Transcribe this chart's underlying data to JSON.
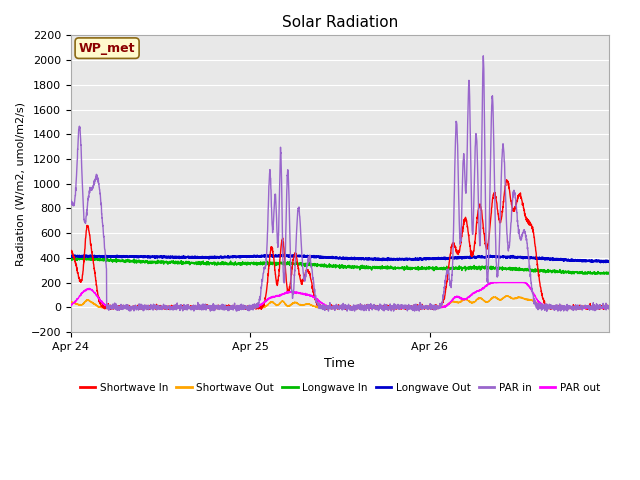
{
  "title": "Solar Radiation",
  "ylabel": "Radiation (W/m2, umol/m2/s)",
  "xlabel": "Time",
  "ylim": [
    -200,
    2200
  ],
  "yticks": [
    -200,
    0,
    200,
    400,
    600,
    800,
    1000,
    1200,
    1400,
    1600,
    1800,
    2000,
    2200
  ],
  "xtick_labels": [
    "Apr 24",
    "Apr 25",
    "Apr 26"
  ],
  "xtick_positions": [
    0.0,
    1.0,
    2.0
  ],
  "annotation_text": "WP_met",
  "annotation_color": "#8B0000",
  "annotation_bg": "#FFFACD",
  "annotation_border": "#8B6914",
  "background_color": "#E8E8E8",
  "series_colors": {
    "shortwave_in": "#FF0000",
    "shortwave_out": "#FFA500",
    "longwave_in": "#00BB00",
    "longwave_out": "#0000CC",
    "par_in": "#9966CC",
    "par_out": "#FF00FF"
  },
  "legend_labels": [
    "Shortwave In",
    "Shortwave Out",
    "Longwave In",
    "Longwave Out",
    "PAR in",
    "PAR out"
  ],
  "legend_colors": [
    "#FF0000",
    "#FFA500",
    "#00BB00",
    "#0000CC",
    "#9966CC",
    "#FF00FF"
  ]
}
